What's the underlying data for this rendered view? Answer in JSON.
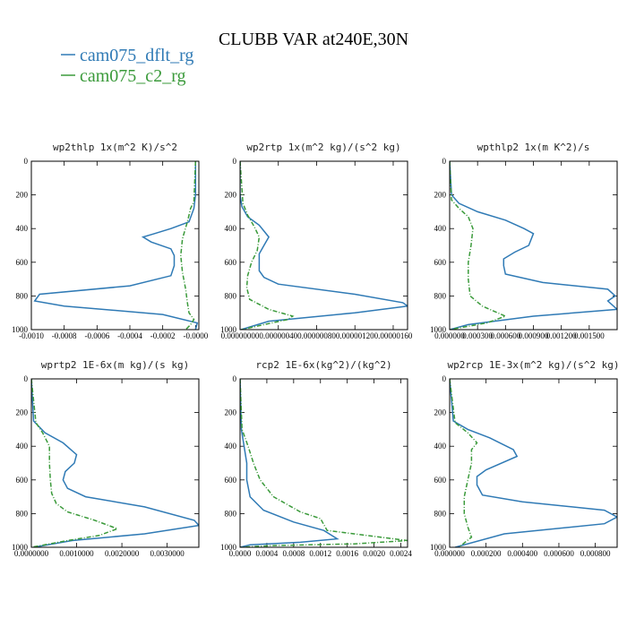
{
  "figure": {
    "title": "CLUBB VAR at240E,30N",
    "colors": {
      "dflt": "#2f7ab5",
      "c2": "#3a9a3a"
    }
  },
  "chart_data": [
    {
      "type": "line",
      "title": "wp2thlp   1x(m^2 K)/s^2",
      "xlim": [
        -0.001,
        2e-05
      ],
      "ylim": [
        1000,
        0
      ],
      "xticks": [
        -0.001,
        -0.0008,
        -0.0006,
        -0.0004,
        -0.0002,
        0
      ],
      "xtick_labels": [
        "-0.0010",
        "-0.0008",
        "-0.0006",
        "-0.0004",
        "-0.0002",
        "-0.0000"
      ],
      "yticks": [
        0,
        200,
        400,
        600,
        800,
        1000
      ],
      "ytick_labels": [
        "0",
        "200",
        "400",
        "600",
        "800",
        "1000"
      ],
      "series": [
        {
          "name": "cam075_dflt_rg",
          "color": "#2f7ab5",
          "x": [
            0,
            0,
            -1e-05,
            -4e-05,
            -0.00015,
            -0.00025,
            -0.00032,
            -0.00027,
            -0.00015,
            -0.00013,
            -0.00013,
            -0.00015,
            -0.0004,
            -0.00095,
            -0.00098,
            -0.0008,
            -0.0002,
            1e-05,
            0
          ],
          "y": [
            0,
            200,
            280,
            360,
            400,
            430,
            450,
            480,
            520,
            560,
            620,
            680,
            740,
            790,
            830,
            860,
            910,
            960,
            1000
          ]
        },
        {
          "name": "cam075_c2_rg",
          "color": "#3a9a3a",
          "x": [
            0,
            -1e-05,
            -3e-05,
            -5e-05,
            -8e-05,
            -9e-05,
            -8e-05,
            -6e-05,
            -5e-05,
            -4e-05,
            -1e-05,
            -3e-05,
            -6e-05
          ],
          "y": [
            0,
            240,
            280,
            360,
            460,
            560,
            660,
            760,
            840,
            900,
            940,
            970,
            1000
          ]
        }
      ]
    },
    {
      "type": "line",
      "title": "wp2rtp   1x(m^2 kg)/(s^2 kg)",
      "xlim": [
        0,
        1.75e-06
      ],
      "ylim": [
        1000,
        0
      ],
      "xticks": [
        0,
        4e-07,
        8e-07,
        1.2e-06,
        1.6e-06
      ],
      "xtick_labels": [
        "0.00000000",
        "0.00000040",
        "0.00000080",
        "0.00000120",
        "0.00000160"
      ],
      "yticks": [
        0,
        200,
        400,
        600,
        800,
        1000
      ],
      "ytick_labels": [
        "0",
        "200",
        "400",
        "600",
        "800",
        "1000"
      ],
      "series": [
        {
          "name": "cam075_dflt_rg",
          "color": "#2f7ab5",
          "x": [
            0,
            0,
            2e-08,
            8e-08,
            2e-07,
            3e-07,
            2.5e-07,
            2e-07,
            2e-07,
            2e-07,
            2.5e-07,
            4e-07,
            1.2e-06,
            1.7e-06,
            1.75e-06,
            1.2e-06,
            3e-07,
            1e-08
          ],
          "y": [
            0,
            200,
            270,
            330,
            380,
            450,
            500,
            550,
            600,
            650,
            690,
            730,
            790,
            840,
            860,
            900,
            950,
            1000
          ]
        },
        {
          "name": "cam075_c2_rg",
          "color": "#3a9a3a",
          "x": [
            0,
            3e-08,
            8e-08,
            1.5e-07,
            2e-07,
            1.8e-07,
            1.2e-07,
            8e-08,
            7e-08,
            1e-07,
            3e-07,
            5.5e-07,
            5e-07,
            2.5e-07,
            2e-08
          ],
          "y": [
            0,
            250,
            320,
            390,
            450,
            530,
            600,
            680,
            750,
            820,
            880,
            920,
            940,
            970,
            1000
          ]
        }
      ]
    },
    {
      "type": "line",
      "title": "wpthlp2   1x(m K^2)/s",
      "xlim": [
        0,
        0.0018
      ],
      "ylim": [
        1000,
        0
      ],
      "xticks": [
        0,
        0.0003,
        0.0006,
        0.0009,
        0.0012,
        0.0015
      ],
      "xtick_labels": [
        "0.000000",
        "0.000300",
        "0.000600",
        "0.000900",
        "0.001200",
        "0.001500"
      ],
      "yticks": [
        0,
        200,
        400,
        600,
        800,
        1000
      ],
      "ytick_labels": [
        "0",
        "200",
        "400",
        "600",
        "800",
        "1000"
      ],
      "series": [
        {
          "name": "cam075_dflt_rg",
          "color": "#2f7ab5",
          "x": [
            0,
            2e-05,
            0.0001,
            0.0003,
            0.0006,
            0.0008,
            0.0009,
            0.00085,
            0.0007,
            0.00058,
            0.00058,
            0.0006,
            0.001,
            0.0017,
            0.00178,
            0.0017,
            0.0018,
            0.0009,
            0.0002,
            0
          ],
          "y": [
            0,
            200,
            250,
            300,
            350,
            400,
            430,
            500,
            540,
            580,
            620,
            670,
            720,
            760,
            800,
            830,
            880,
            920,
            970,
            1000
          ]
        },
        {
          "name": "cam075_c2_rg",
          "color": "#3a9a3a",
          "x": [
            0,
            2e-05,
            0.0001,
            0.0002,
            0.00025,
            0.00023,
            0.0002,
            0.0002,
            0.00022,
            0.00035,
            0.0006,
            0.0004,
            0
          ],
          "y": [
            0,
            230,
            280,
            330,
            400,
            500,
            600,
            700,
            800,
            860,
            920,
            960,
            1000
          ]
        }
      ]
    },
    {
      "type": "line",
      "title": "wprtp2   1E-6x(m kg)/(s kg)",
      "xlim": [
        0,
        0.0037
      ],
      "ylim": [
        1000,
        0
      ],
      "xticks": [
        0,
        0.001,
        0.002,
        0.003
      ],
      "xtick_labels": [
        "0.0000000",
        "0.0010000",
        "0.0020000",
        "0.0030000"
      ],
      "yticks": [
        0,
        200,
        400,
        600,
        800,
        1000
      ],
      "ytick_labels": [
        "0",
        "200",
        "400",
        "600",
        "800",
        "1000"
      ],
      "series": [
        {
          "name": "cam075_dflt_rg",
          "color": "#2f7ab5",
          "x": [
            0,
            5e-05,
            0.0003,
            0.0007,
            0.001,
            0.00095,
            0.00075,
            0.0007,
            0.0008,
            0.0012,
            0.0025,
            0.0036,
            0.0037,
            0.0025,
            0.0009,
            5e-05
          ],
          "y": [
            0,
            250,
            320,
            380,
            450,
            500,
            550,
            600,
            650,
            700,
            760,
            840,
            870,
            920,
            960,
            1000
          ]
        },
        {
          "name": "cam075_c2_rg",
          "color": "#3a9a3a",
          "x": [
            0,
            0.0001,
            0.00025,
            0.0004,
            0.0004,
            0.00042,
            0.00045,
            0.00055,
            0.0008,
            0.0014,
            0.0019,
            0.0015,
            0.0008,
            0
          ],
          "y": [
            0,
            260,
            320,
            400,
            500,
            600,
            680,
            740,
            790,
            840,
            890,
            930,
            960,
            1000
          ]
        }
      ]
    },
    {
      "type": "line",
      "title": "rcp2   1E-6x(kg^2)/(kg^2)",
      "xlim": [
        0,
        0.0025
      ],
      "ylim": [
        1000,
        0
      ],
      "xticks": [
        0,
        0.0004,
        0.0008,
        0.0012,
        0.0016,
        0.002,
        0.0024
      ],
      "xtick_labels": [
        "0.0000",
        "0.0004",
        "0.0008",
        "0.0012",
        "0.0016",
        "0.0020",
        "0.0024"
      ],
      "yticks": [
        0,
        200,
        400,
        600,
        800,
        1000
      ],
      "ytick_labels": [
        "0",
        "200",
        "400",
        "600",
        "800",
        "1000"
      ],
      "series": [
        {
          "name": "cam075_dflt_rg",
          "color": "#2f7ab5",
          "x": [
            0,
            2e-05,
            6e-05,
            0.0001,
            0.0001,
            0.00015,
            0.00035,
            0.0008,
            0.00125,
            0.00145,
            0.0009,
            0.00015,
            0
          ],
          "y": [
            0,
            300,
            400,
            500,
            600,
            700,
            780,
            850,
            900,
            950,
            970,
            985,
            1000
          ]
        },
        {
          "name": "cam075_c2_rg",
          "color": "#3a9a3a",
          "x": [
            0,
            3e-05,
            0.00012,
            0.0002,
            0.0003,
            0.0005,
            0.0009,
            0.0012,
            0.0013,
            0.0021,
            0.0025,
            0.0017,
            0.0005,
            0
          ],
          "y": [
            0,
            300,
            400,
            500,
            600,
            700,
            790,
            830,
            900,
            940,
            960,
            980,
            990,
            1000
          ]
        }
      ]
    },
    {
      "type": "line",
      "title": "wp2rcp   1E-3x(m^2 kg)/(s^2 kg)",
      "xlim": [
        0,
        0.00092
      ],
      "ylim": [
        1000,
        0
      ],
      "xticks": [
        0,
        0.0002,
        0.0004,
        0.0006,
        0.0008
      ],
      "xtick_labels": [
        "0.000000",
        "0.000200",
        "0.000400",
        "0.000600",
        "0.000800"
      ],
      "yticks": [
        0,
        200,
        400,
        600,
        800,
        1000
      ],
      "ytick_labels": [
        "0",
        "200",
        "400",
        "600",
        "800",
        "1000"
      ],
      "series": [
        {
          "name": "cam075_dflt_rg",
          "color": "#2f7ab5",
          "x": [
            0,
            2e-05,
            0.0001,
            0.00022,
            0.00035,
            0.00037,
            0.0002,
            0.00015,
            0.00015,
            0.00018,
            0.0004,
            0.00085,
            0.00092,
            0.00085,
            0.0003,
            3e-05
          ],
          "y": [
            0,
            250,
            300,
            350,
            420,
            460,
            540,
            580,
            630,
            690,
            730,
            780,
            820,
            860,
            920,
            1000
          ]
        },
        {
          "name": "cam075_c2_rg",
          "color": "#3a9a3a",
          "x": [
            0,
            3e-05,
            0.0001,
            0.00015,
            0.00012,
            0.00012,
            0.0001,
            8e-05,
            8e-05,
            0.0001,
            0.00012,
            5e-05
          ],
          "y": [
            0,
            260,
            320,
            380,
            420,
            500,
            600,
            700,
            800,
            880,
            940,
            1000
          ]
        }
      ]
    }
  ]
}
